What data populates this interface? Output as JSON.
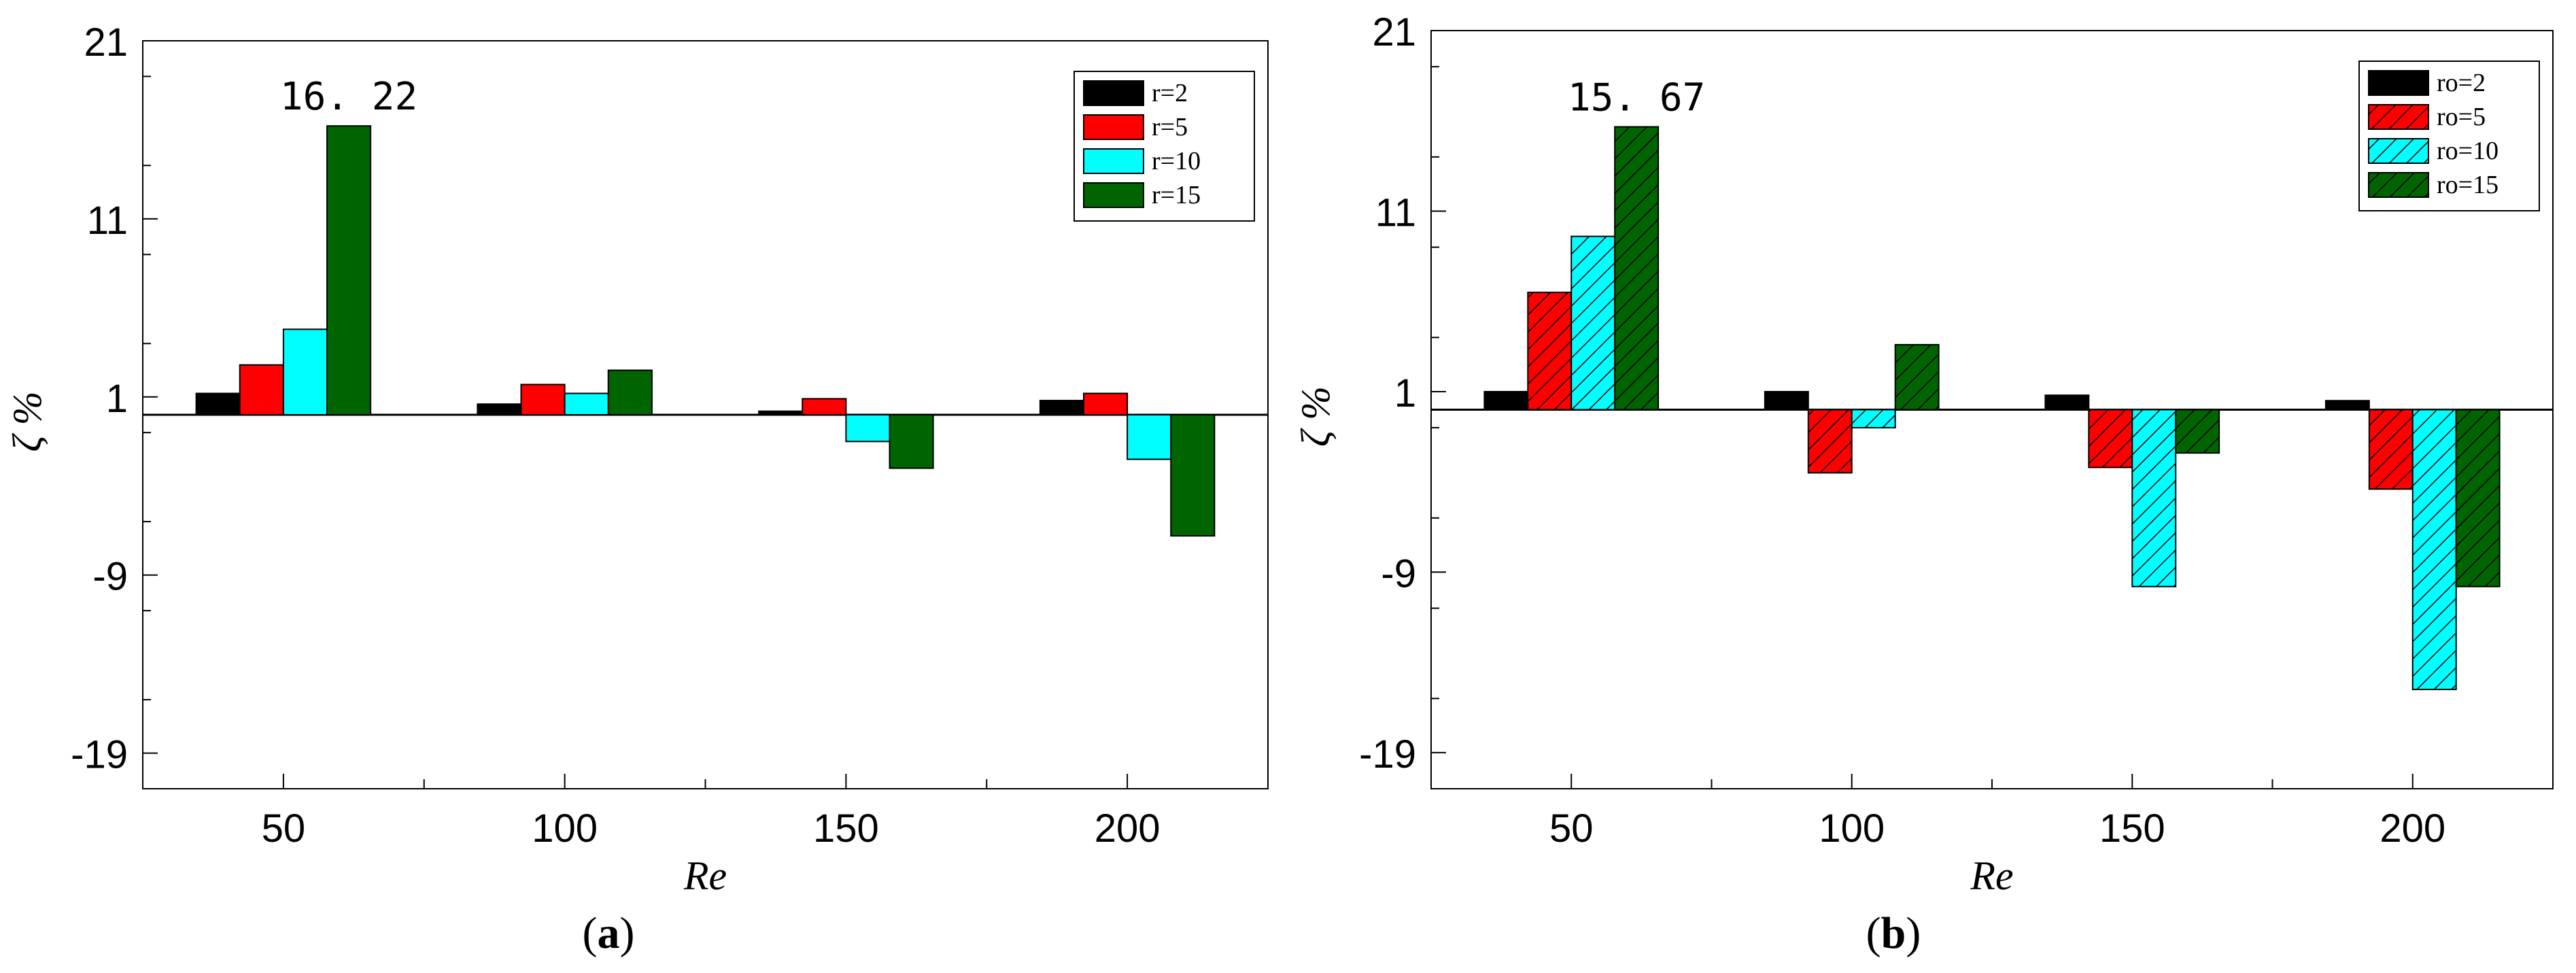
{
  "figure": {
    "panels": [
      {
        "caption": "a"
      },
      {
        "caption": "b"
      }
    ]
  },
  "colors": {
    "black": "#000000",
    "red": "#ff0000",
    "cyan": "#00ffff",
    "green": "#006400"
  },
  "chart_data": [
    {
      "type": "bar",
      "panel": "a",
      "xlabel": "Re",
      "ylabel": "ζ %",
      "categories": [
        "50",
        "100",
        "150",
        "200"
      ],
      "ylim": [
        -21,
        21
      ],
      "yticks": [
        21,
        11,
        1,
        -9,
        -19
      ],
      "zero_line": 0,
      "hatched": false,
      "legend_position": "top-right",
      "series": [
        {
          "name": "r=2",
          "color": "#000000",
          "values": [
            1.2,
            0.6,
            0.2,
            0.8
          ]
        },
        {
          "name": "r=5",
          "color": "#ff0000",
          "values": [
            2.8,
            1.7,
            0.9,
            1.2
          ]
        },
        {
          "name": "r=10",
          "color": "#00ffff",
          "values": [
            4.8,
            1.2,
            -1.5,
            -2.5
          ]
        },
        {
          "name": "r=15",
          "color": "#006400",
          "values": [
            16.22,
            2.5,
            -3.0,
            -6.8
          ]
        }
      ],
      "annotations": [
        {
          "category": "50",
          "series": "r=15",
          "text": "16. 22"
        }
      ]
    },
    {
      "type": "bar",
      "panel": "b",
      "xlabel": "Re",
      "ylabel": "ζ %",
      "categories": [
        "50",
        "100",
        "150",
        "200"
      ],
      "ylim": [
        -21,
        21
      ],
      "yticks": [
        21,
        11,
        1,
        -9,
        -19
      ],
      "zero_line": 0,
      "hatched": true,
      "legend_position": "top-right",
      "series": [
        {
          "name": "ro=2",
          "color": "#000000",
          "values": [
            1.0,
            1.0,
            0.8,
            0.5
          ]
        },
        {
          "name": "ro=5",
          "color": "#ff0000",
          "values": [
            6.5,
            -3.5,
            -3.2,
            -4.4
          ]
        },
        {
          "name": "ro=10",
          "color": "#00ffff",
          "values": [
            9.6,
            -1.0,
            -9.8,
            -15.5
          ]
        },
        {
          "name": "ro=15",
          "color": "#006400",
          "values": [
            15.67,
            3.6,
            -2.4,
            -9.8
          ]
        }
      ],
      "annotations": [
        {
          "category": "50",
          "series": "ro=15",
          "text": "15. 67"
        }
      ]
    }
  ]
}
